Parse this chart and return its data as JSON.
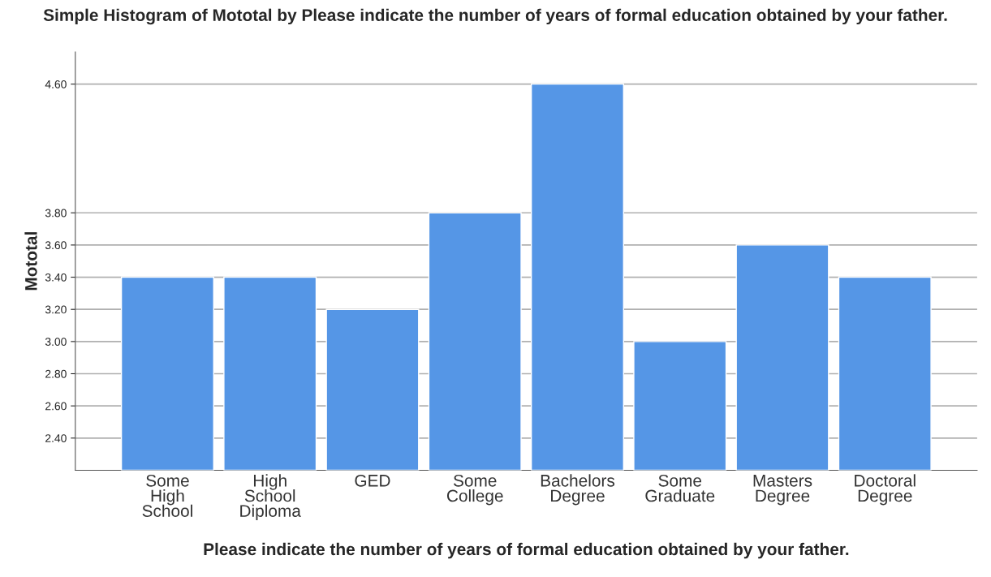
{
  "chart_data": {
    "type": "bar",
    "title": "Simple Histogram of Mototal by Please indicate the number of years of formal education obtained by your father.",
    "xlabel": "Please indicate the number of years of formal education obtained by your father.",
    "ylabel": "Mototal",
    "categories": [
      "Some\nHigh\nSchool",
      "High\nSchool\nDiploma",
      "GED",
      "Some\nCollege",
      "Bachelors\nDegree",
      "Some\nGraduate",
      "Masters\nDegree",
      "Doctoral\nDegree"
    ],
    "values": [
      3.4,
      3.4,
      3.2,
      3.8,
      4.6,
      3.0,
      3.6,
      3.4
    ],
    "color": "#5596e6",
    "ylim": [
      2.2,
      4.8
    ],
    "yticks": [
      {
        "value": 2.4,
        "label": "2.40"
      },
      {
        "value": 2.6,
        "label": "2.60"
      },
      {
        "value": 2.8,
        "label": "2.80"
      },
      {
        "value": 3.0,
        "label": "3.00"
      },
      {
        "value": 3.2,
        "label": "3.20"
      },
      {
        "value": 3.4,
        "label": "3.40"
      },
      {
        "value": 3.6,
        "label": "3.60"
      },
      {
        "value": 3.8,
        "label": "3.80"
      },
      {
        "value": 4.6,
        "label": "4.60"
      }
    ],
    "grid": "y"
  }
}
